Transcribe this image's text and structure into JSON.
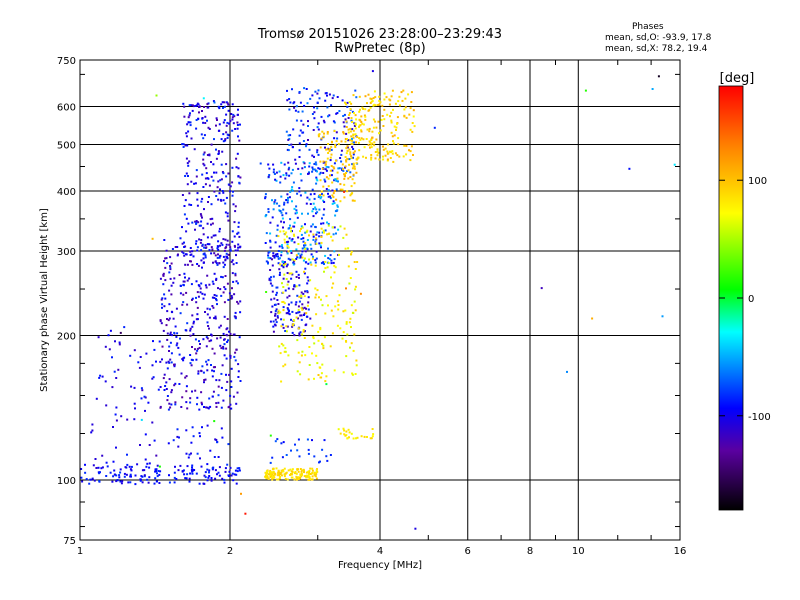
{
  "title": "Tromsø 20151026 23:28:00–23:29:43",
  "subtitle": "RwPretec (8p)",
  "stats": {
    "title": "Phases",
    "line_o": "mean, sd,O: -93.9, 17.8",
    "line_x": "mean, sd,X: 78.2, 19.4"
  },
  "colorbar": {
    "label": "[deg]",
    "ticks": [
      "100",
      "0",
      "-100"
    ],
    "tick_values": [
      100,
      0,
      -100
    ],
    "range": [
      -180,
      180
    ]
  },
  "chart_data": {
    "type": "scatter",
    "xlabel": "Frequency [MHz]",
    "ylabel": "Stationary phase Virtual Height [km]",
    "x_scale": "log",
    "y_scale": "log",
    "xlim": [
      1,
      16
    ],
    "ylim": [
      75,
      750
    ],
    "x_ticks": [
      1,
      2,
      4,
      6,
      8,
      10,
      16
    ],
    "x_tick_labels": [
      "1",
      "2",
      "4",
      "6",
      "8",
      "10",
      "16"
    ],
    "y_ticks": [
      75,
      100,
      200,
      300,
      400,
      500,
      600,
      750
    ],
    "y_tick_labels": [
      "75",
      "100",
      "200",
      "300",
      "400",
      "500",
      "600",
      "750"
    ],
    "grid": true,
    "color_encoding": "phase [deg]",
    "clusters": [
      {
        "mode": "O",
        "x": [
          1.0,
          2.1
        ],
        "y": [
          98,
          108
        ],
        "phase": [
          -110,
          -80
        ],
        "n": 160
      },
      {
        "mode": "O",
        "x": [
          1.05,
          1.45
        ],
        "y": [
          100,
          210
        ],
        "phase": [
          -120,
          -85
        ],
        "n": 80
      },
      {
        "mode": "O",
        "x": [
          1.45,
          2.1
        ],
        "y": [
          140,
          320
        ],
        "phase": [
          -130,
          -80
        ],
        "n": 420
      },
      {
        "mode": "O",
        "x": [
          1.6,
          2.1
        ],
        "y": [
          280,
          620
        ],
        "phase": [
          -125,
          -80
        ],
        "n": 300
      },
      {
        "mode": "O",
        "x": [
          1.5,
          2.0
        ],
        "y": [
          110,
          130
        ],
        "phase": [
          -110,
          -80
        ],
        "n": 30
      },
      {
        "mode": "O",
        "x": [
          2.4,
          2.9
        ],
        "y": [
          200,
          300
        ],
        "phase": [
          -125,
          -80
        ],
        "n": 160
      },
      {
        "mode": "O",
        "x": [
          2.35,
          3.3
        ],
        "y": [
          280,
          460
        ],
        "phase": [
          -110,
          -40
        ],
        "n": 280
      },
      {
        "mode": "O",
        "x": [
          2.6,
          3.6
        ],
        "y": [
          430,
          660
        ],
        "phase": [
          -120,
          -60
        ],
        "n": 170
      },
      {
        "mode": "O",
        "x": [
          2.4,
          3.3
        ],
        "y": [
          108,
          122
        ],
        "phase": [
          -100,
          -70
        ],
        "n": 25
      },
      {
        "mode": "X",
        "x": [
          2.35,
          3.0
        ],
        "y": [
          100,
          106
        ],
        "phase": [
          75,
          95
        ],
        "n": 150
      },
      {
        "mode": "X",
        "x": [
          2.5,
          3.6
        ],
        "y": [
          160,
          340
        ],
        "phase": [
          55,
          95
        ],
        "n": 220
      },
      {
        "mode": "X",
        "x": [
          3.3,
          3.9
        ],
        "y": [
          122,
          128
        ],
        "phase": [
          60,
          90
        ],
        "n": 25
      },
      {
        "mode": "X",
        "x": [
          3.0,
          3.6
        ],
        "y": [
          380,
          540
        ],
        "phase": [
          85,
          110
        ],
        "n": 110
      },
      {
        "mode": "X",
        "x": [
          3.4,
          4.7
        ],
        "y": [
          460,
          650
        ],
        "phase": [
          70,
          110
        ],
        "n": 220
      },
      {
        "mode": "noise",
        "x": [
          1.0,
          16.0
        ],
        "y": [
          75,
          750
        ],
        "phase": [
          -180,
          180
        ],
        "n": 30
      }
    ]
  }
}
